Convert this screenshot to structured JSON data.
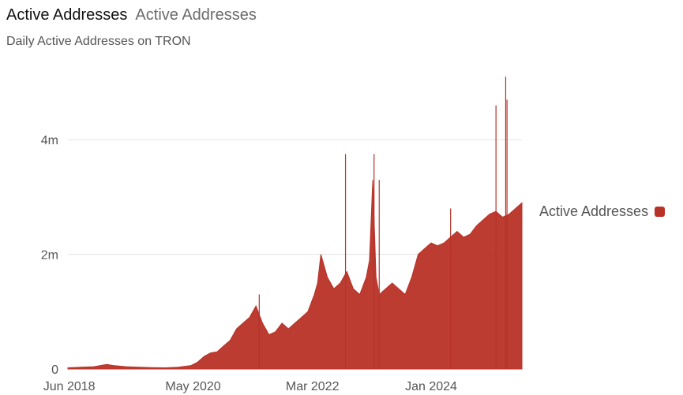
{
  "header": {
    "title": "Active Addresses",
    "title_alt": "Active Addresses",
    "subtitle": "Daily Active Addresses on TRON"
  },
  "legend": {
    "label": "Active Addresses"
  },
  "colors": {
    "series": "#b83227",
    "gridline": "#e3e3e3",
    "axis": "#444444"
  },
  "chart_data": {
    "type": "area",
    "title": "Active Addresses",
    "subtitle": "Daily Active Addresses on TRON",
    "xlabel": "",
    "ylabel": "",
    "x_tick_labels": [
      "Jun 2018",
      "May 2020",
      "Mar 2022",
      "Jan 2024"
    ],
    "x_tick_years": [
      2018.42,
      2020.33,
      2022.17,
      2024.0
    ],
    "xlim": [
      2018.4,
      2025.4
    ],
    "y_ticks": [
      0,
      2000000,
      4000000
    ],
    "y_tick_labels": [
      "0",
      "2m",
      "4m"
    ],
    "ylim": [
      0,
      5200000
    ],
    "legend_position": "right",
    "series": [
      {
        "name": "Active Addresses",
        "x": [
          2018.4,
          2018.6,
          2018.8,
          2019.0,
          2019.1,
          2019.3,
          2019.5,
          2019.7,
          2019.9,
          2020.1,
          2020.3,
          2020.4,
          2020.5,
          2020.6,
          2020.7,
          2020.8,
          2020.9,
          2021.0,
          2021.1,
          2021.2,
          2021.3,
          2021.35,
          2021.4,
          2021.5,
          2021.6,
          2021.7,
          2021.8,
          2021.9,
          2022.0,
          2022.1,
          2022.2,
          2022.25,
          2022.3,
          2022.4,
          2022.5,
          2022.6,
          2022.7,
          2022.8,
          2022.9,
          2023.0,
          2023.05,
          2023.1,
          2023.15,
          2023.2,
          2023.3,
          2023.4,
          2023.5,
          2023.6,
          2023.7,
          2023.8,
          2023.9,
          2024.0,
          2024.1,
          2024.2,
          2024.3,
          2024.4,
          2024.5,
          2024.6,
          2024.7,
          2024.8,
          2024.9,
          2025.0,
          2025.1,
          2025.2,
          2025.3,
          2025.4
        ],
        "values": [
          20000,
          30000,
          40000,
          80000,
          60000,
          40000,
          30000,
          25000,
          20000,
          30000,
          60000,
          120000,
          220000,
          280000,
          300000,
          400000,
          500000,
          700000,
          800000,
          900000,
          1100000,
          950000,
          800000,
          600000,
          650000,
          800000,
          700000,
          800000,
          900000,
          1000000,
          1300000,
          1500000,
          2000000,
          1600000,
          1400000,
          1500000,
          1700000,
          1400000,
          1300000,
          1600000,
          1900000,
          3300000,
          1600000,
          1300000,
          1400000,
          1500000,
          1400000,
          1300000,
          1600000,
          2000000,
          2100000,
          2200000,
          2150000,
          2200000,
          2300000,
          2400000,
          2300000,
          2350000,
          2500000,
          2600000,
          2700000,
          2750000,
          2650000,
          2700000,
          2800000,
          2900000
        ]
      }
    ],
    "spikes": [
      {
        "x": 2019.1,
        "value": 60000
      },
      {
        "x": 2021.35,
        "value": 1300000
      },
      {
        "x": 2022.68,
        "value": 3750000
      },
      {
        "x": 2023.12,
        "value": 3750000
      },
      {
        "x": 2023.2,
        "value": 3300000
      },
      {
        "x": 2024.3,
        "value": 2800000
      },
      {
        "x": 2025.0,
        "value": 4600000
      },
      {
        "x": 2025.15,
        "value": 5100000
      },
      {
        "x": 2025.17,
        "value": 4700000
      }
    ]
  }
}
